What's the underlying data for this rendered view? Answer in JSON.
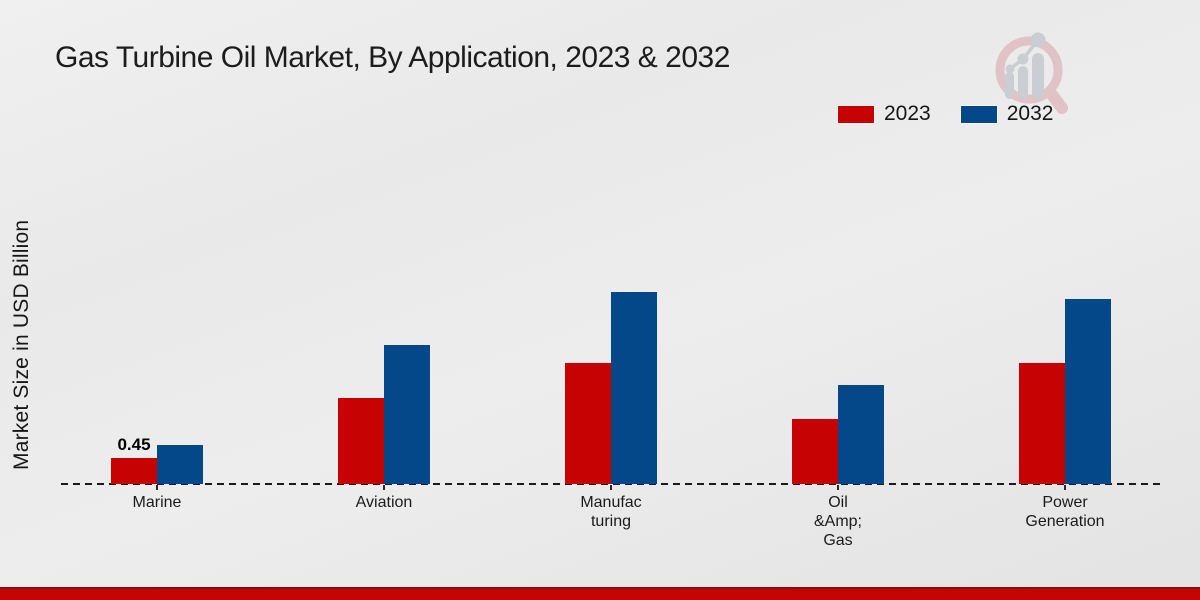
{
  "title": "Gas Turbine Oil Market, By Application, 2023 & 2032",
  "ylabel": "Market Size in USD Billion",
  "legend": {
    "items": [
      {
        "label": "2023",
        "color": "#c60202"
      },
      {
        "label": "2032",
        "color": "#05488a"
      }
    ]
  },
  "footer": {
    "color": "#c30505"
  },
  "colors": {
    "series_2023": "#c60202",
    "series_2032": "#05488a",
    "footer_bar": "#c30505",
    "axis_line": "#1b1b1b"
  },
  "watermark_icon": "magnifier-growth-chart-logo",
  "chart_data": {
    "type": "bar",
    "title": "Gas Turbine Oil Market, By Application, 2023 & 2032",
    "xlabel": "",
    "ylabel": "Market Size in USD Billion",
    "categories": [
      "Marine",
      "Aviation",
      "Manufac turing",
      "Oil &Amp; Gas",
      "Power Generation"
    ],
    "category_label_lines": [
      [
        "Marine"
      ],
      [
        "Aviation"
      ],
      [
        "Manufac",
        "turing"
      ],
      [
        "Oil",
        "&Amp;",
        "Gas"
      ],
      [
        "Power",
        "Generation"
      ]
    ],
    "series": [
      {
        "name": "2023",
        "color": "#c60202",
        "values": [
          0.45,
          1.48,
          2.08,
          1.12,
          2.08
        ]
      },
      {
        "name": "2032",
        "color": "#05488a",
        "values": [
          0.67,
          2.38,
          3.28,
          1.69,
          3.16
        ]
      }
    ],
    "data_labels": [
      {
        "series": "2023",
        "category_index": 0,
        "text": "0.45"
      }
    ],
    "ylim": [
      0,
      3.6
    ],
    "grid": false,
    "y_axis_ticks": "none",
    "legend_position": "top-right",
    "baseline_style": "dashed"
  }
}
